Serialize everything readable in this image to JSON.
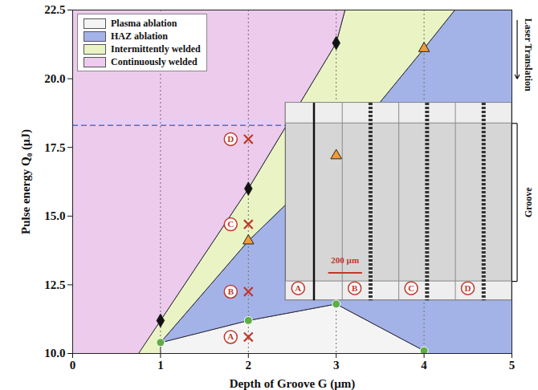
{
  "chart_data": {
    "type": "scatter",
    "x_label": "Depth of Groove G (μm)",
    "y_label": "Pulse energy Q₀ (μJ)",
    "xlim": [
      0,
      5
    ],
    "xticks": [
      0,
      1,
      2,
      3,
      4,
      5
    ],
    "ylim": [
      10,
      22.5
    ],
    "yticks": [
      {
        "value": 10,
        "label": "10.0"
      },
      12.5,
      {
        "value": 15,
        "label": "15.0"
      },
      17.5,
      {
        "value": 20,
        "label": "20.0"
      },
      22.5
    ],
    "grid": "x",
    "legend": "upper left",
    "regions": [
      {
        "name": "Plasma ablation",
        "color": "#f4f4f4",
        "x": [
          1,
          2,
          3,
          4,
          4,
          1
        ],
        "values": [
          10.4,
          11.2,
          11.8,
          10.1,
          10,
          10
        ]
      },
      {
        "name": "HAZ ablation",
        "color": "#a3b3e8",
        "x": [
          1,
          2,
          3,
          4,
          4.35,
          5,
          5,
          4,
          4,
          3,
          2
        ],
        "values": [
          10.4,
          14.1,
          17.2,
          21.1,
          22.5,
          22.5,
          10,
          10,
          10.1,
          11.8,
          11.2
        ]
      },
      {
        "name": "Intermittently welded",
        "color": "#eaf3c4",
        "x": [
          0.75,
          1,
          1,
          2,
          3,
          4,
          4.35,
          3.1,
          3,
          2,
          1
        ],
        "values": [
          10,
          10,
          10.4,
          14.1,
          17.2,
          21.1,
          22.5,
          22.5,
          21.3,
          16,
          11.2
        ]
      },
      {
        "name": "Continuously welded",
        "color": "#eccbec",
        "x": [
          0,
          0.75,
          1,
          2,
          3,
          3.1,
          0
        ],
        "values": [
          10,
          10,
          11.2,
          16,
          21.3,
          22.5,
          22.5
        ]
      }
    ],
    "series": [
      {
        "color": "#111111",
        "marker": "diamond",
        "x": [
          1,
          2,
          3
        ],
        "values": [
          11.2,
          16.0,
          21.3
        ]
      },
      {
        "color": "#f39c34",
        "marker": "triangle",
        "x": [
          2,
          3,
          4
        ],
        "values": [
          14.1,
          17.2,
          21.1
        ]
      },
      {
        "color": "#5fae45",
        "marker": "circle",
        "x": [
          1,
          2,
          3,
          4
        ],
        "values": [
          10.4,
          11.2,
          11.8,
          10.1
        ]
      },
      {
        "color": "#c0392b",
        "marker": "x",
        "x": [
          2,
          2,
          2,
          2
        ],
        "values": [
          10.6,
          12.25,
          14.7,
          17.8
        ],
        "labels": [
          "A",
          "B",
          "C",
          "D"
        ]
      }
    ],
    "hline": {
      "value": 18.3,
      "color": "#4a72d4",
      "line_style": "dashed"
    },
    "inset": {
      "labels": [
        "A",
        "B",
        "C",
        "D"
      ],
      "scale_bar": "200 µm",
      "arrow_label": "Laser Translation",
      "bracket_label": "Groove"
    }
  }
}
